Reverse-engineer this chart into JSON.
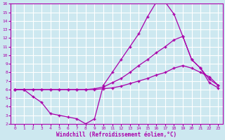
{
  "xlabel": "Windchill (Refroidissement éolien,°C)",
  "bg_color": "#cde8f0",
  "grid_color": "#ffffff",
  "line_color": "#aa00aa",
  "xlim": [
    -0.5,
    23.5
  ],
  "ylim": [
    2,
    16
  ],
  "xticks": [
    0,
    1,
    2,
    3,
    4,
    5,
    6,
    7,
    8,
    9,
    10,
    11,
    12,
    13,
    14,
    15,
    16,
    17,
    18,
    19,
    20,
    21,
    22,
    23
  ],
  "yticks": [
    2,
    3,
    4,
    5,
    6,
    7,
    8,
    9,
    10,
    11,
    12,
    13,
    14,
    15,
    16
  ],
  "curve1_x": [
    0,
    1,
    2,
    3,
    4,
    5,
    6,
    7,
    8,
    9,
    10,
    11,
    12,
    13,
    14,
    15,
    16,
    17,
    18,
    19,
    20,
    21,
    22,
    23
  ],
  "curve1_y": [
    6.0,
    6.0,
    5.2,
    4.5,
    3.2,
    3.0,
    2.8,
    2.6,
    2.0,
    2.6,
    6.5,
    8.0,
    9.5,
    11.0,
    12.5,
    14.5,
    16.2,
    16.2,
    14.8,
    12.2,
    9.5,
    8.5,
    6.8,
    6.2
  ],
  "curve2_x": [
    0,
    1,
    2,
    3,
    4,
    5,
    6,
    7,
    8,
    9,
    10,
    11,
    12,
    13,
    14,
    15,
    16,
    17,
    18,
    19,
    20,
    21,
    22,
    23
  ],
  "curve2_y": [
    6.0,
    6.0,
    6.0,
    6.0,
    6.0,
    6.0,
    6.0,
    6.0,
    6.0,
    6.1,
    6.3,
    6.8,
    7.3,
    8.0,
    8.8,
    9.5,
    10.3,
    11.0,
    11.8,
    12.2,
    9.5,
    8.5,
    7.2,
    6.5
  ],
  "curve3_x": [
    0,
    1,
    2,
    3,
    4,
    5,
    6,
    7,
    8,
    9,
    10,
    11,
    12,
    13,
    14,
    15,
    16,
    17,
    18,
    19,
    20,
    21,
    22,
    23
  ],
  "curve3_y": [
    6.0,
    6.0,
    6.0,
    6.0,
    6.0,
    6.0,
    6.0,
    6.0,
    6.0,
    6.0,
    6.1,
    6.2,
    6.4,
    6.7,
    7.0,
    7.3,
    7.7,
    8.0,
    8.5,
    8.8,
    8.5,
    8.0,
    7.5,
    6.5
  ],
  "marker": "+",
  "markersize": 3,
  "linewidth": 0.9
}
